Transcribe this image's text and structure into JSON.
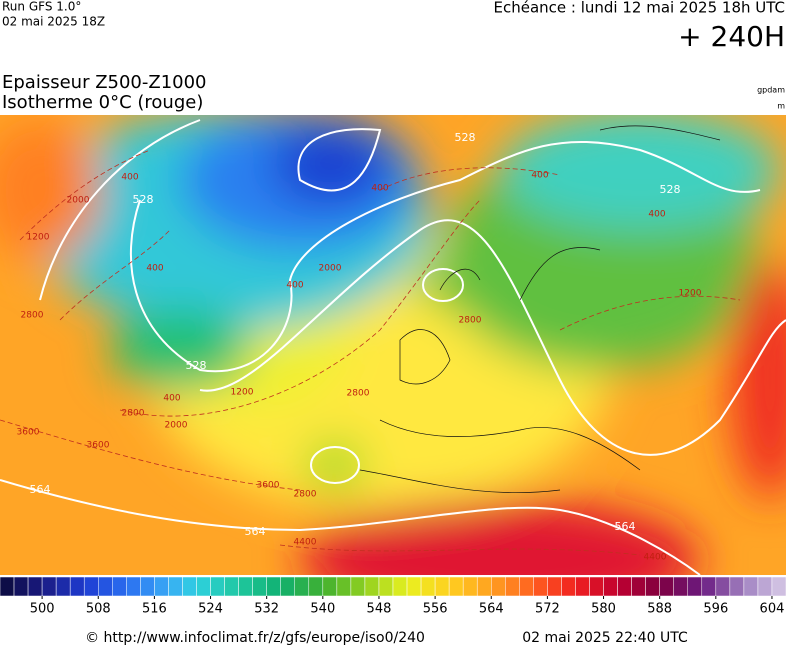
{
  "header": {
    "run": "Run GFS 1.0°",
    "init": "02 mai 2025 18Z",
    "valid": "Echéance : lundi 12 mai 2025 18h UTC",
    "lead": "+ 240H",
    "title": "Epaisseur Z500-Z1000",
    "subtitle": "Isotherme 0°C (rouge)",
    "unit_thickness": "gpdam",
    "unit_iso0": "m"
  },
  "map": {
    "thickness_labels": [
      "528",
      "528",
      "528",
      "528",
      "564",
      "564",
      "564"
    ],
    "iso0_labels": [
      "400",
      "400",
      "400",
      "400",
      "400",
      "400",
      "400",
      "2000",
      "2000",
      "2000",
      "1200",
      "1200",
      "1200",
      "2800",
      "2800",
      "2800",
      "2800",
      "2800",
      "3600",
      "3600",
      "3600",
      "4400",
      "4400"
    ]
  },
  "colorbar": {
    "range": [
      494,
      606
    ],
    "ticks": [
      500,
      508,
      516,
      524,
      532,
      540,
      548,
      556,
      564,
      572,
      580,
      588,
      596,
      604
    ],
    "stops": [
      [
        494,
        "#0a0a3c"
      ],
      [
        500,
        "#1a1a80"
      ],
      [
        506,
        "#1e3cd2"
      ],
      [
        512,
        "#2a6ef0"
      ],
      [
        518,
        "#3aaaf5"
      ],
      [
        522,
        "#2ed0e0"
      ],
      [
        528,
        "#20c8a0"
      ],
      [
        534,
        "#10b070"
      ],
      [
        540,
        "#40b030"
      ],
      [
        546,
        "#90d020"
      ],
      [
        552,
        "#e8f020"
      ],
      [
        558,
        "#ffd020"
      ],
      [
        564,
        "#ffa020"
      ],
      [
        570,
        "#ff6020"
      ],
      [
        576,
        "#f02020"
      ],
      [
        582,
        "#c00030"
      ],
      [
        588,
        "#800040"
      ],
      [
        594,
        "#6a1a80"
      ],
      [
        600,
        "#a080c0"
      ],
      [
        606,
        "#d8cce8"
      ]
    ]
  },
  "footer": {
    "source": "© http://www.infoclimat.fr/z/gfs/europe/iso0/240",
    "generated": "02 mai 2025 22:40 UTC"
  }
}
